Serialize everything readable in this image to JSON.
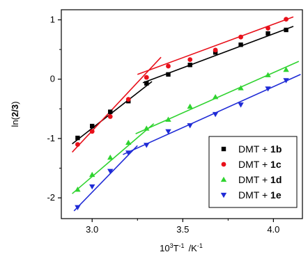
{
  "chart_data": {
    "type": "scatter",
    "xlabel_base": "10",
    "xlabel_sup1": "3",
    "xlabel_mid": "T",
    "xlabel_sup2": "-1",
    "xlabel_unit": "/K",
    "xlabel_sup3": "-1",
    "ylabel_prefix": "ln(",
    "ylabel_bold": "2/3",
    "ylabel_suffix": ")",
    "xlim": [
      2.83,
      4.16
    ],
    "ylim": [
      -2.35,
      1.17
    ],
    "x_ticks": [
      3.0,
      3.5,
      4.0
    ],
    "x_tick_labels": [
      "3.0",
      "3.5",
      "4.0"
    ],
    "y_ticks": [
      -2,
      -1,
      0,
      1
    ],
    "y_tick_labels": [
      "-2",
      "-1",
      "0",
      "1"
    ],
    "legend_position": "lower-right",
    "series": [
      {
        "label_prefix": "DMT + ",
        "label_bold": "1b",
        "color": "#000000",
        "marker": "square",
        "x": [
          2.92,
          3.0,
          3.1,
          3.2,
          3.3,
          3.42,
          3.54,
          3.68,
          3.82,
          3.97,
          4.07
        ],
        "y": [
          -0.99,
          -0.79,
          -0.55,
          -0.37,
          -0.07,
          0.08,
          0.24,
          0.45,
          0.58,
          0.77,
          0.83
        ],
        "fits": [
          {
            "x": [
              2.89,
              3.33
            ],
            "y": [
              -1.09,
              -0.04
            ]
          },
          {
            "x": [
              3.28,
              4.11
            ],
            "y": [
              -0.06,
              0.89
            ]
          }
        ]
      },
      {
        "label_prefix": "DMT + ",
        "label_bold": "1c",
        "color": "#e8101a",
        "marker": "circle",
        "x": [
          2.92,
          3.0,
          3.1,
          3.2,
          3.3,
          3.42,
          3.54,
          3.68,
          3.82,
          3.97,
          4.07
        ],
        "y": [
          -1.1,
          -0.88,
          -0.63,
          -0.34,
          0.03,
          0.22,
          0.33,
          0.49,
          0.71,
          0.86,
          1.01
        ],
        "fits": [
          {
            "x": [
              2.89,
              3.38
            ],
            "y": [
              -1.23,
              0.37
            ]
          },
          {
            "x": [
              3.25,
              4.11
            ],
            "y": [
              0.08,
              1.05
            ]
          }
        ]
      },
      {
        "label_prefix": "DMT + ",
        "label_bold": "1d",
        "color": "#2fd32f",
        "marker": "triangle-up",
        "x": [
          2.92,
          3.0,
          3.1,
          3.2,
          3.3,
          3.42,
          3.54,
          3.68,
          3.82,
          3.97,
          4.07
        ],
        "y": [
          -1.86,
          -1.61,
          -1.32,
          -1.07,
          -0.83,
          -0.68,
          -0.46,
          -0.3,
          -0.15,
          0.07,
          0.16
        ],
        "fits": [
          {
            "x": [
              2.89,
              3.34
            ],
            "y": [
              -1.93,
              -0.75
            ]
          },
          {
            "x": [
              3.24,
              4.14
            ],
            "y": [
              -0.92,
              0.3
            ]
          }
        ]
      },
      {
        "label_prefix": "DMT + ",
        "label_bold": "1e",
        "color": "#1f2bd6",
        "marker": "triangle-down",
        "x": [
          2.92,
          3.0,
          3.1,
          3.2,
          3.3,
          3.42,
          3.54,
          3.68,
          3.82,
          3.97,
          4.07
        ],
        "y": [
          -2.16,
          -1.81,
          -1.55,
          -1.24,
          -1.11,
          -0.88,
          -0.78,
          -0.59,
          -0.43,
          -0.16,
          -0.02
        ],
        "fits": [
          {
            "x": [
              2.9,
              3.25
            ],
            "y": [
              -2.22,
              -1.12
            ]
          },
          {
            "x": [
              3.17,
              4.15
            ],
            "y": [
              -1.27,
              0.08
            ]
          }
        ]
      }
    ]
  }
}
